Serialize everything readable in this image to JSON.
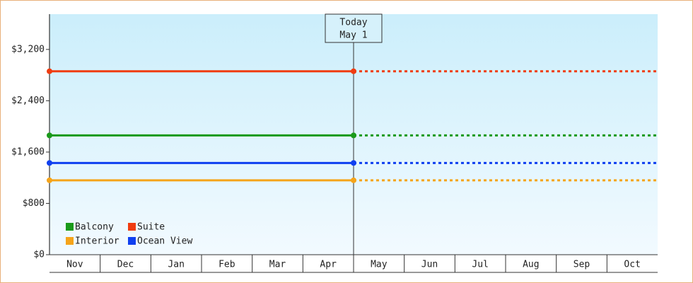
{
  "chart_data": {
    "type": "line",
    "categories": [
      "Nov",
      "Dec",
      "Jan",
      "Feb",
      "Mar",
      "Apr",
      "May",
      "Jun",
      "Jul",
      "Aug",
      "Sep",
      "Oct"
    ],
    "today_label": "Today",
    "today_date": "May 1",
    "series": [
      {
        "name": "Balcony",
        "color": "#1a9a1a",
        "value": 1860
      },
      {
        "name": "Suite",
        "color": "#f03c10",
        "value": 2860
      },
      {
        "name": "Interior",
        "color": "#f5a41a",
        "value": 1160
      },
      {
        "name": "Ocean View",
        "color": "#1040f0",
        "value": 1430
      }
    ],
    "ylim": [
      0,
      3750
    ],
    "yticks": [
      {
        "value": 0,
        "label": "$0"
      },
      {
        "value": 800,
        "label": "$800"
      },
      {
        "value": 1600,
        "label": "$1,600"
      },
      {
        "value": 2400,
        "label": "$2,400"
      },
      {
        "value": 3200,
        "label": "$3,200"
      }
    ],
    "legend": "bottom-left"
  }
}
